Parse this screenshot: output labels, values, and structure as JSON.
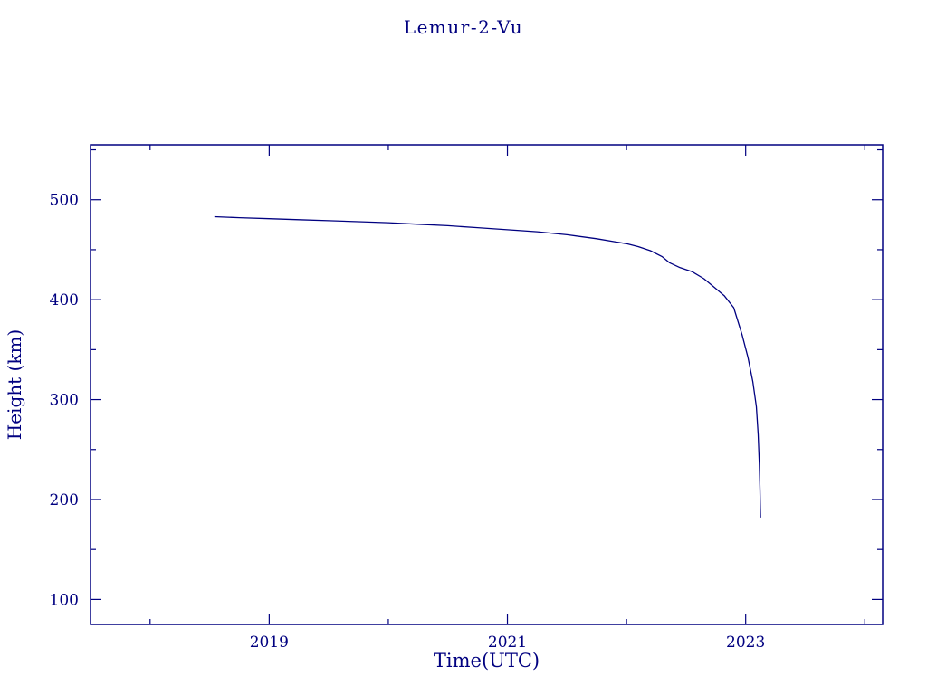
{
  "page": {
    "background_color": "#ffffff",
    "accent_color": "#000080"
  },
  "chart_data": {
    "type": "line",
    "title": "Lemur-2-Vu",
    "xlabel": "Time(UTC)",
    "ylabel": "Height (km)",
    "line_color": "#000080",
    "axis_color": "#000080",
    "grid": false,
    "legend": "none",
    "xlim": [
      2017.5,
      2024.15
    ],
    "ylim": [
      75,
      555
    ],
    "xticks": [
      2019,
      2021,
      2023
    ],
    "xtick_labels": [
      "2019",
      "2021",
      "2023"
    ],
    "xticks_minor": [
      2018,
      2020,
      2022,
      2024
    ],
    "yticks": [
      100,
      200,
      300,
      400,
      500
    ],
    "ytick_labels": [
      "100",
      "200",
      "300",
      "400",
      "500"
    ],
    "yticks_minor": [
      150,
      250,
      350,
      450,
      550
    ],
    "series": [
      {
        "name": "Lemur-2-Vu height",
        "x": [
          2018.54,
          2018.75,
          2019.0,
          2019.25,
          2019.5,
          2019.75,
          2020.0,
          2020.25,
          2020.5,
          2020.75,
          2021.0,
          2021.25,
          2021.5,
          2021.75,
          2021.9,
          2022.0,
          2022.1,
          2022.2,
          2022.3,
          2022.36,
          2022.45,
          2022.55,
          2022.65,
          2022.74,
          2022.82,
          2022.9,
          2022.97,
          2023.02,
          2023.06,
          2023.09,
          2023.105,
          2023.115,
          2023.12,
          2023.125
        ],
        "y": [
          483,
          482,
          481,
          480,
          479,
          478,
          477,
          475.5,
          474,
          472,
          470,
          468,
          465,
          461,
          458,
          456,
          453,
          449,
          443,
          437,
          432,
          428,
          421,
          412,
          404,
          392,
          365,
          342,
          318,
          293,
          265,
          235,
          210,
          182
        ]
      }
    ]
  }
}
